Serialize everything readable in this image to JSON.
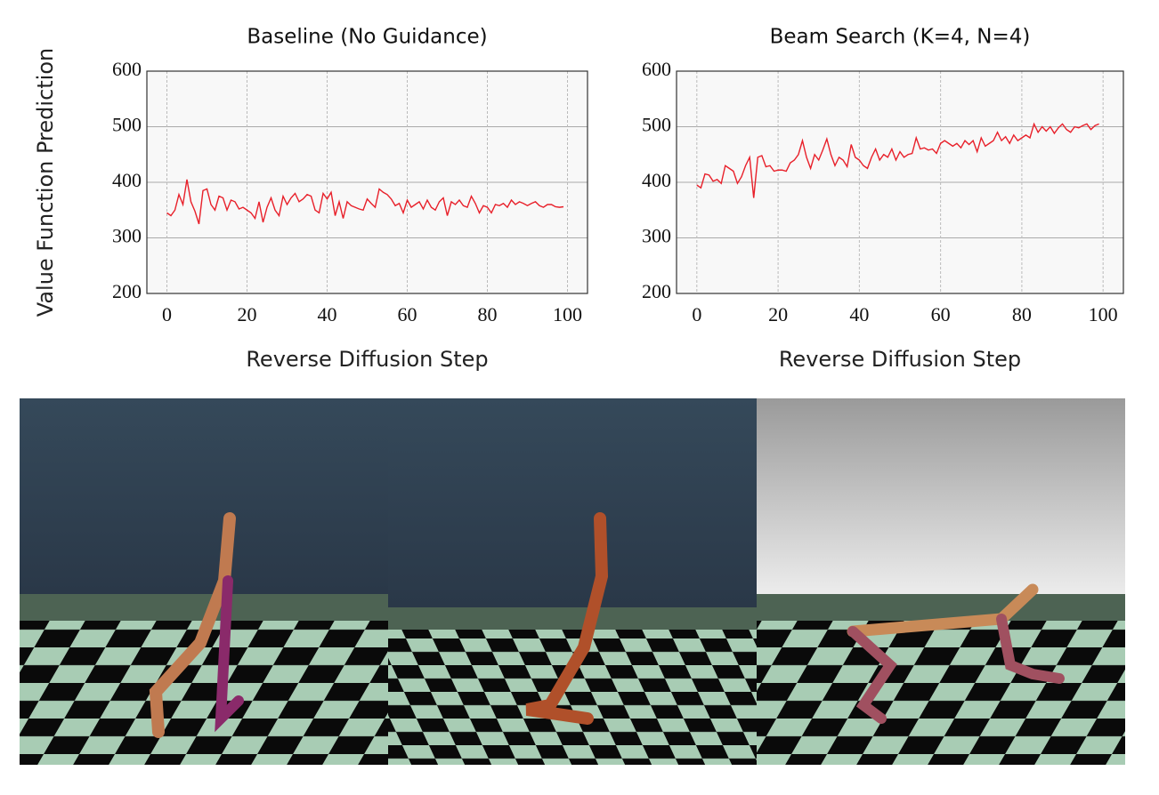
{
  "chart_data": [
    {
      "type": "line",
      "title": "Baseline (No Guidance)",
      "x_label": "Reverse Diffusion Step",
      "y_label": "Value Function Prediction",
      "x": [
        0,
        1,
        2,
        3,
        4,
        5,
        6,
        7,
        8,
        9,
        10,
        11,
        12,
        13,
        14,
        15,
        16,
        17,
        18,
        19,
        20,
        21,
        22,
        23,
        24,
        25,
        26,
        27,
        28,
        29,
        30,
        31,
        32,
        33,
        34,
        35,
        36,
        37,
        38,
        39,
        40,
        41,
        42,
        43,
        44,
        45,
        46,
        47,
        48,
        49,
        50,
        51,
        52,
        53,
        54,
        55,
        56,
        57,
        58,
        59,
        60,
        61,
        62,
        63,
        64,
        65,
        66,
        67,
        68,
        69,
        70,
        71,
        72,
        73,
        74,
        75,
        76,
        77,
        78,
        79,
        80,
        81,
        82,
        83,
        84,
        85,
        86,
        87,
        88,
        89,
        90,
        91,
        92,
        93,
        94,
        95,
        96,
        97,
        98,
        99
      ],
      "series": [
        {
          "color": "#e8202a",
          "values": [
            345,
            340,
            350,
            378,
            360,
            405,
            365,
            348,
            325,
            385,
            388,
            360,
            350,
            375,
            372,
            350,
            368,
            365,
            352,
            355,
            350,
            345,
            335,
            365,
            328,
            355,
            372,
            350,
            340,
            375,
            360,
            372,
            380,
            365,
            370,
            378,
            375,
            350,
            345,
            380,
            370,
            382,
            340,
            365,
            335,
            365,
            358,
            355,
            352,
            350,
            370,
            362,
            355,
            388,
            382,
            378,
            370,
            358,
            362,
            345,
            368,
            355,
            360,
            365,
            352,
            368,
            355,
            350,
            365,
            372,
            340,
            365,
            360,
            368,
            358,
            355,
            375,
            362,
            345,
            358,
            355,
            345,
            360,
            358,
            362,
            355,
            368,
            360,
            365,
            362,
            358,
            362,
            365,
            358,
            355,
            360,
            360,
            356,
            355,
            356
          ]
        }
      ],
      "xlim": [
        -5,
        105
      ],
      "ylim": [
        200,
        600
      ],
      "xticks": [
        0,
        20,
        40,
        60,
        80,
        100
      ],
      "yticks": [
        200,
        300,
        400,
        500,
        600
      ],
      "grid": true
    },
    {
      "type": "line",
      "title": "Beam Search (K=4, N=4)",
      "x_label": "Reverse Diffusion Step",
      "x": [
        0,
        1,
        2,
        3,
        4,
        5,
        6,
        7,
        8,
        9,
        10,
        11,
        12,
        13,
        14,
        15,
        16,
        17,
        18,
        19,
        20,
        21,
        22,
        23,
        24,
        25,
        26,
        27,
        28,
        29,
        30,
        31,
        32,
        33,
        34,
        35,
        36,
        37,
        38,
        39,
        40,
        41,
        42,
        43,
        44,
        45,
        46,
        47,
        48,
        49,
        50,
        51,
        52,
        53,
        54,
        55,
        56,
        57,
        58,
        59,
        60,
        61,
        62,
        63,
        64,
        65,
        66,
        67,
        68,
        69,
        70,
        71,
        72,
        73,
        74,
        75,
        76,
        77,
        78,
        79,
        80,
        81,
        82,
        83,
        84,
        85,
        86,
        87,
        88,
        89,
        90,
        91,
        92,
        93,
        94,
        95,
        96,
        97,
        98,
        99
      ],
      "series": [
        {
          "color": "#e8202a",
          "values": [
            395,
            390,
            415,
            413,
            402,
            405,
            398,
            430,
            425,
            420,
            398,
            410,
            430,
            445,
            372,
            445,
            448,
            428,
            430,
            420,
            422,
            422,
            420,
            435,
            440,
            450,
            475,
            445,
            425,
            450,
            440,
            458,
            478,
            450,
            430,
            445,
            440,
            428,
            468,
            445,
            440,
            430,
            425,
            445,
            460,
            440,
            450,
            445,
            460,
            440,
            455,
            445,
            450,
            452,
            480,
            460,
            462,
            458,
            460,
            452,
            470,
            475,
            470,
            465,
            470,
            462,
            475,
            468,
            475,
            455,
            480,
            465,
            470,
            475,
            490,
            475,
            482,
            470,
            485,
            475,
            480,
            485,
            480,
            505,
            490,
            500,
            492,
            500,
            488,
            498,
            505,
            495,
            490,
            500,
            498,
            502,
            505,
            495,
            502,
            505
          ]
        }
      ],
      "xlim": [
        -5,
        105
      ],
      "ylim": [
        200,
        600
      ],
      "xticks": [
        0,
        20,
        40,
        60,
        80,
        100
      ],
      "yticks": [
        200,
        300,
        400,
        500,
        600
      ],
      "grid": true
    }
  ]
}
